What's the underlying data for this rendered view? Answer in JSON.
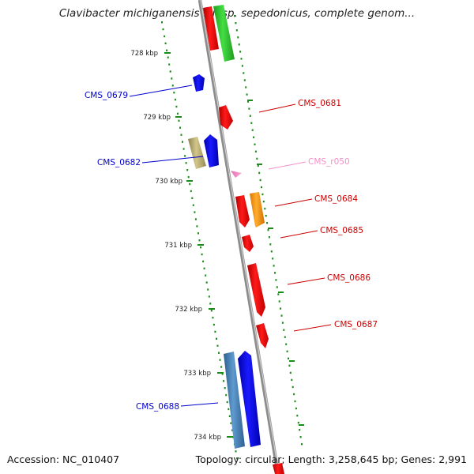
{
  "header": {
    "title": "Clavibacter michiganensis subsp. sepedonicus, complete genom..."
  },
  "footer": {
    "accession": "Accession: NC_010407",
    "summary": "Topology: circular; Length: 3,258,645 bp; Genes: 2,991"
  },
  "ticks": [
    "728 kbp",
    "729 kbp",
    "730 kbp",
    "731 kbp",
    "732 kbp",
    "733 kbp",
    "734 kbp"
  ],
  "genes": [
    {
      "label": "CMS_0679",
      "color": "#0000cc"
    },
    {
      "label": "CMS_0681",
      "color": "#cc0000"
    },
    {
      "label": "CMS_0682",
      "color": "#0000cc"
    },
    {
      "label": "CMS_r050",
      "color": "#f48fc8"
    },
    {
      "label": "CMS_0684",
      "color": "#cc0000"
    },
    {
      "label": "CMS_0685",
      "color": "#cc0000"
    },
    {
      "label": "CMS_0686",
      "color": "#cc0000"
    },
    {
      "label": "CMS_0687",
      "color": "#cc0000"
    },
    {
      "label": "CMS_0688",
      "color": "#0000cc"
    }
  ],
  "colors": {
    "backbone": "#8c8c8c",
    "forward_gene": "#0000ff",
    "reverse_gene": "#ff0000",
    "gc_dots": "#1a8c1a",
    "green_feature": "#33cc33",
    "orange_feature": "#ff9900",
    "olive_feature": "#b8a860",
    "steel_feature": "#4682b4",
    "rrna_feature": "#ff99cc"
  }
}
